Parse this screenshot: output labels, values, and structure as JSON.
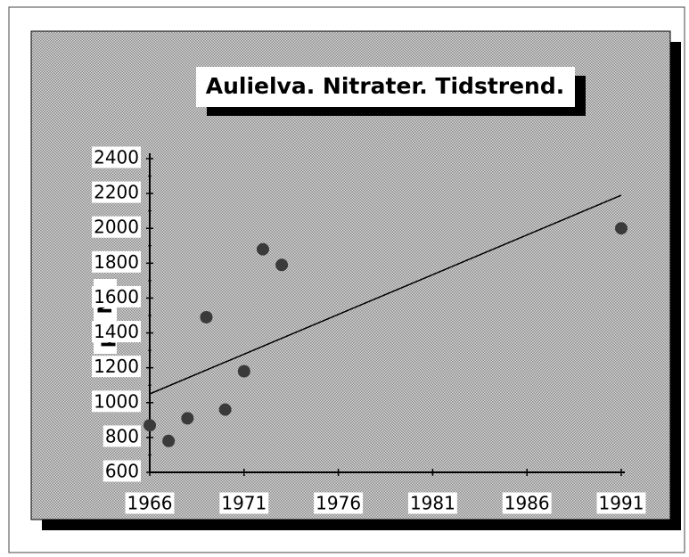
{
  "chart_data": {
    "type": "scatter",
    "title": "Aulielva. Nitrater. Tidstrend.",
    "y_label": "µg N/l",
    "points": {
      "x": [
        1966,
        1967,
        1968,
        1969,
        1970,
        1971,
        1972,
        1973,
        1991
      ],
      "values": [
        870,
        780,
        910,
        1490,
        960,
        1180,
        1880,
        1790,
        2000
      ],
      "color": "#3a3a3a"
    },
    "trend": {
      "x": [
        1966,
        1991
      ],
      "values": [
        1050,
        2190
      ],
      "color": "#000000"
    },
    "xlim": [
      1966,
      1991
    ],
    "xticks": [
      1966,
      1971,
      1976,
      1981,
      1986,
      1991
    ],
    "ylim": [
      600,
      2400
    ],
    "yticks": [
      600,
      800,
      1000,
      1200,
      1400,
      1600,
      1800,
      2000,
      2200,
      2400
    ],
    "grid": false
  }
}
